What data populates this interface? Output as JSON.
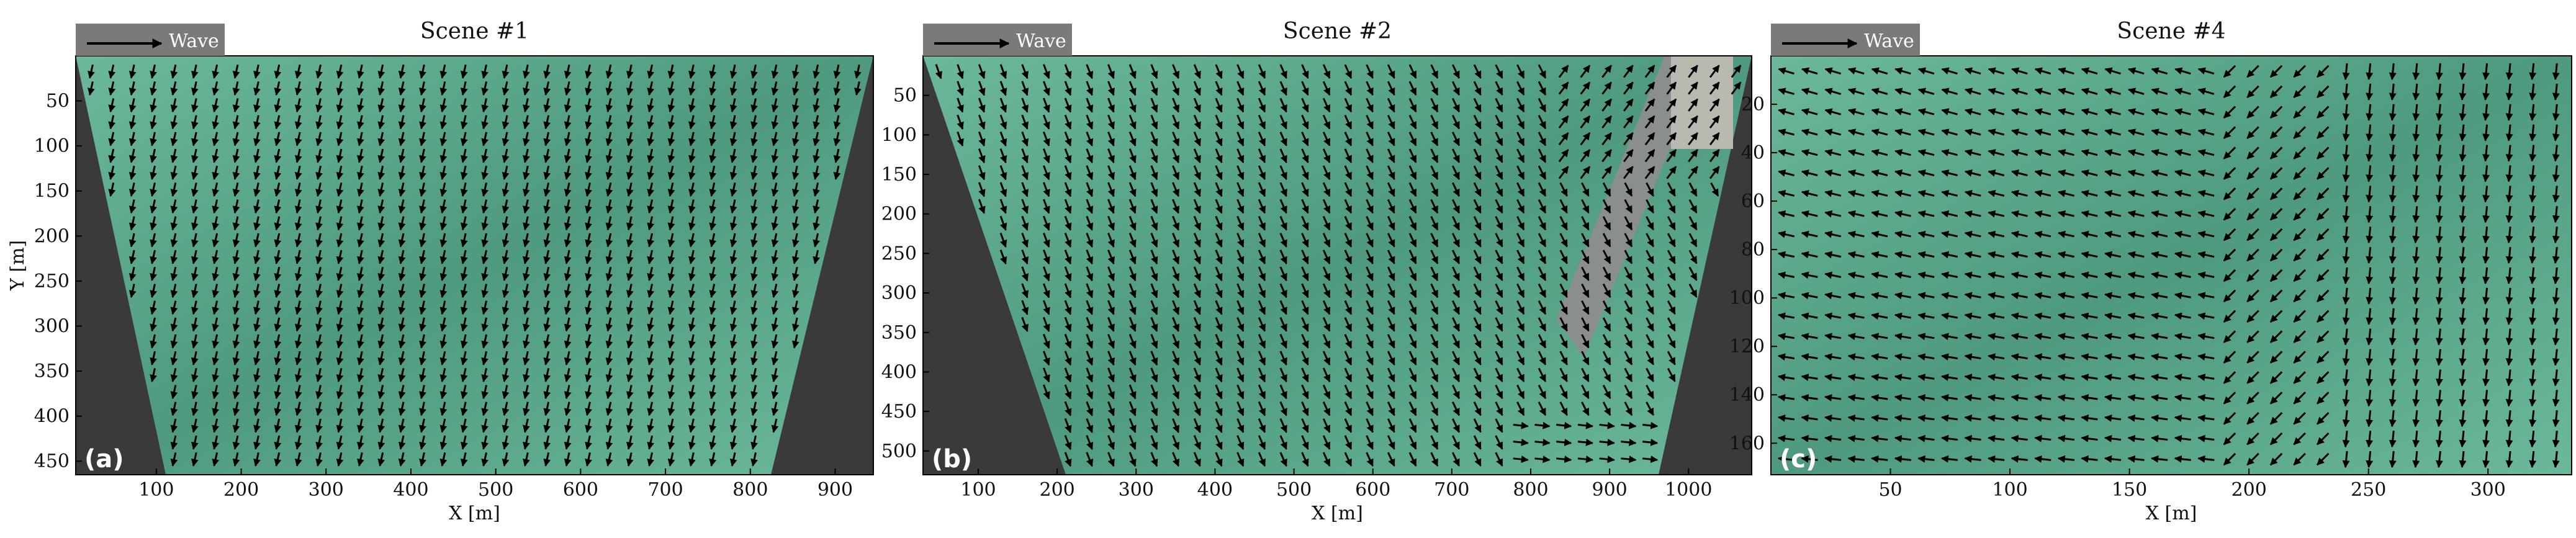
{
  "figure": {
    "xlabel": "X [m]",
    "ylabel": "Y [m]",
    "wave_label": "Wave",
    "colors": {
      "water_a": "#4f9a7e",
      "water_b": "#6bb89a",
      "masked": "#3a3a3a",
      "arrow": "#000000",
      "wave_box": "#7a7a7a"
    }
  },
  "chart_data": [
    {
      "type": "quiver",
      "title": "Scene #1",
      "panel_label": "(a)",
      "xlabel": "X [m]",
      "ylabel": "Y [m]",
      "xlim": [
        5,
        945
      ],
      "ylim": [
        0,
        465
      ],
      "x_ticks": [
        100,
        200,
        300,
        400,
        500,
        600,
        700,
        800,
        900
      ],
      "y_ticks": [
        50,
        100,
        150,
        200,
        250,
        300,
        350,
        400,
        450
      ],
      "y_inverted": true,
      "masked_regions": [
        "bottom-left-wedge",
        "bottom-right-wedge"
      ],
      "flow_direction": "predominantly downward (south), slight leftward tilt"
    },
    {
      "type": "quiver",
      "title": "Scene #2",
      "panel_label": "(b)",
      "xlabel": "X [m]",
      "ylabel": "",
      "xlim": [
        30,
        1080
      ],
      "ylim": [
        0,
        530
      ],
      "x_ticks": [
        100,
        200,
        300,
        400,
        500,
        600,
        700,
        800,
        900,
        1000
      ],
      "y_ticks": [
        50,
        100,
        150,
        200,
        250,
        300,
        350,
        400,
        450,
        500
      ],
      "y_inverted": true,
      "masked_regions": [
        "bottom-left-wedge",
        "right-edge-wedge"
      ],
      "flow_direction": "downward, turning rightward near pier at bottom right"
    },
    {
      "type": "quiver",
      "title": "Scene #4",
      "panel_label": "(c)",
      "xlabel": "X [m]",
      "ylabel": "",
      "xlim": [
        0,
        335
      ],
      "ylim": [
        0,
        173
      ],
      "x_ticks": [
        50,
        100,
        150,
        200,
        250,
        300
      ],
      "y_ticks": [
        20,
        40,
        60,
        80,
        100,
        120,
        140,
        160
      ],
      "y_inverted": true,
      "masked_regions": [],
      "flow_direction": "leftward/up-left on left half, rotating to downward on right half"
    }
  ]
}
